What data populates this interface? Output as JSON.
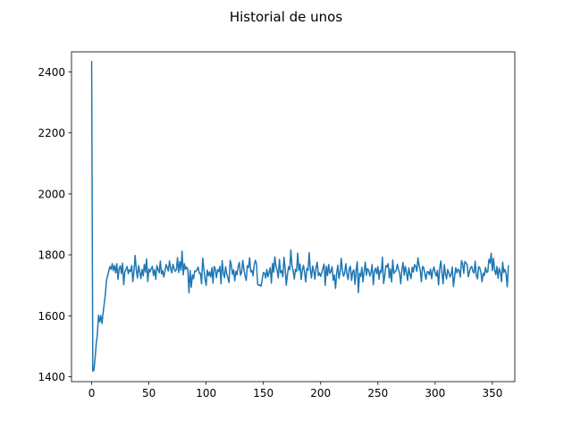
{
  "chart_data": {
    "type": "line",
    "title": "Historial de unos",
    "xlabel": "",
    "ylabel": "",
    "xlim": [
      -17.6,
      369.6
    ],
    "ylim": [
      1384,
      2466
    ],
    "grid": false,
    "x_ticks": [
      0,
      50,
      100,
      150,
      200,
      250,
      300,
      350
    ],
    "y_ticks": [
      1400,
      1600,
      1800,
      2000,
      2200,
      2400
    ],
    "series": [
      {
        "color": "#1f77b4",
        "x_start": 0,
        "x_step": 1,
        "values": [
          2436,
          1418,
          1422,
          1461,
          1508,
          1540,
          1602,
          1580,
          1601,
          1575,
          1610,
          1640,
          1672,
          1718,
          1731,
          1749,
          1762,
          1752,
          1771,
          1748,
          1765,
          1741,
          1771,
          1720,
          1753,
          1764,
          1738,
          1773,
          1702,
          1744,
          1752,
          1762,
          1738,
          1751,
          1745,
          1765,
          1712,
          1747,
          1798,
          1751,
          1724,
          1765,
          1744,
          1722,
          1752,
          1731,
          1769,
          1743,
          1787,
          1712,
          1753,
          1744,
          1755,
          1762,
          1732,
          1751,
          1720,
          1765,
          1752,
          1741,
          1780,
          1737,
          1749,
          1727,
          1745,
          1768,
          1758,
          1747,
          1780,
          1755,
          1741,
          1769,
          1755,
          1746,
          1751,
          1791,
          1742,
          1778,
          1749,
          1812,
          1734,
          1771,
          1752,
          1760,
          1752,
          1675,
          1749,
          1694,
          1734,
          1721,
          1747,
          1745,
          1751,
          1760,
          1739,
          1740,
          1705,
          1789,
          1756,
          1721,
          1700,
          1750,
          1731,
          1744,
          1727,
          1758,
          1707,
          1762,
          1754,
          1725,
          1751,
          1745,
          1762,
          1705,
          1781,
          1740,
          1725,
          1761,
          1738,
          1724,
          1709,
          1782,
          1766,
          1736,
          1751,
          1715,
          1746,
          1735,
          1762,
          1775,
          1733,
          1743,
          1782,
          1752,
          1731,
          1716,
          1764,
          1758,
          1790,
          1744,
          1749,
          1731,
          1768,
          1782,
          1770,
          1703,
          1700,
          1701,
          1697,
          1720,
          1742,
          1740,
          1724,
          1752,
          1728,
          1743,
          1758,
          1707,
          1772,
          1743,
          1793,
          1762,
          1749,
          1724,
          1785,
          1741,
          1748,
          1728,
          1792,
          1755,
          1700,
          1735,
          1761,
          1751,
          1816,
          1763,
          1748,
          1721,
          1752,
          1745,
          1806,
          1749,
          1770,
          1719,
          1750,
          1766,
          1741,
          1711,
          1755,
          1749,
          1807,
          1752,
          1724,
          1763,
          1748,
          1720,
          1758,
          1776,
          1732,
          1741,
          1729,
          1741,
          1756,
          1770,
          1700,
          1762,
          1732,
          1768,
          1739,
          1745,
          1761,
          1716,
          1734,
          1690,
          1739,
          1766,
          1722,
          1743,
          1788,
          1749,
          1730,
          1741,
          1771,
          1737,
          1719,
          1754,
          1762,
          1716,
          1744,
          1751,
          1703,
          1749,
          1777,
          1676,
          1740,
          1729,
          1759,
          1711,
          1745,
          1776,
          1733,
          1755,
          1749,
          1730,
          1743,
          1768,
          1702,
          1745,
          1756,
          1738,
          1762,
          1720,
          1749,
          1742,
          1792,
          1706,
          1730,
          1765,
          1760,
          1771,
          1724,
          1754,
          1711,
          1783,
          1739,
          1745,
          1749,
          1769,
          1752,
          1740,
          1705,
          1752,
          1775,
          1733,
          1762,
          1741,
          1716,
          1757,
          1736,
          1722,
          1759,
          1744,
          1768,
          1763,
          1746,
          1790,
          1766,
          1749,
          1712,
          1762,
          1758,
          1739,
          1720,
          1744,
          1745,
          1734,
          1753,
          1722,
          1747,
          1760,
          1742,
          1730,
          1749,
          1701,
          1755,
          1780,
          1741,
          1705,
          1768,
          1738,
          1721,
          1752,
          1741,
          1727,
          1736,
          1760,
          1696,
          1727,
          1758,
          1741,
          1753,
          1749,
          1727,
          1781,
          1771,
          1740,
          1778,
          1773,
          1768,
          1728,
          1745,
          1758,
          1762,
          1745,
          1740,
          1779,
          1732,
          1721,
          1761,
          1758,
          1741,
          1712,
          1740,
          1732,
          1759,
          1742,
          1745,
          1785,
          1773,
          1805,
          1748,
          1788,
          1750,
          1735,
          1762,
          1723,
          1756,
          1744,
          1712,
          1776,
          1742,
          1752,
          1738,
          1695,
          1766
        ]
      }
    ]
  }
}
